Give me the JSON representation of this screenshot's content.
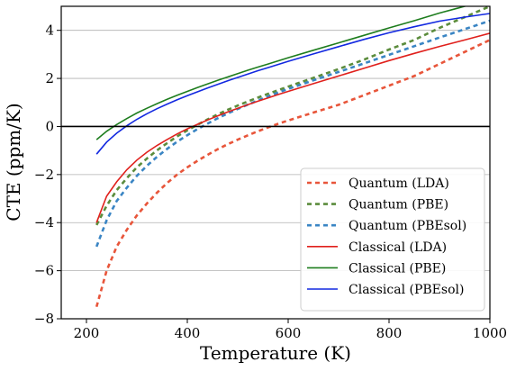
{
  "chart_data": {
    "type": "line",
    "xlabel": "Temperature (K)",
    "ylabel": "CTE (ppm/K)",
    "xlim": [
      150,
      1000
    ],
    "ylim": [
      -8,
      5
    ],
    "xticks": [
      200,
      400,
      600,
      800,
      1000
    ],
    "yticks": [
      -8,
      -6,
      -4,
      -2,
      0,
      2,
      4
    ],
    "grid": "horizontal",
    "zero_line": 0,
    "legend_position": "lower-right",
    "series": [
      {
        "name": "Quantum (LDA)",
        "color": "#e8553a",
        "style": "dashed",
        "x": [
          220,
          240,
          260,
          280,
          300,
          320,
          340,
          360,
          380,
          400,
          420,
          440,
          460,
          480,
          500,
          520,
          540,
          560,
          580,
          600,
          650,
          700,
          750,
          800,
          850,
          900,
          950,
          1000
        ],
        "y": [
          -7.5,
          -6.0,
          -5.0,
          -4.3,
          -3.7,
          -3.2,
          -2.75,
          -2.35,
          -2.0,
          -1.7,
          -1.43,
          -1.18,
          -0.95,
          -0.74,
          -0.55,
          -0.37,
          -0.2,
          -0.04,
          0.11,
          0.25,
          0.58,
          0.9,
          1.3,
          1.7,
          2.1,
          2.6,
          3.1,
          3.6
        ]
      },
      {
        "name": "Quantum (PBE)",
        "color": "#5b8c3c",
        "style": "dashed",
        "x": [
          220,
          240,
          260,
          280,
          300,
          320,
          340,
          360,
          380,
          400,
          420,
          440,
          460,
          480,
          500,
          520,
          540,
          560,
          580,
          600,
          650,
          700,
          750,
          800,
          850,
          900,
          950,
          1000
        ],
        "y": [
          -4.1,
          -3.3,
          -2.65,
          -2.15,
          -1.7,
          -1.33,
          -0.99,
          -0.69,
          -0.41,
          -0.16,
          0.07,
          0.29,
          0.5,
          0.69,
          0.87,
          1.04,
          1.2,
          1.36,
          1.51,
          1.66,
          2.02,
          2.39,
          2.78,
          3.2,
          3.6,
          4.1,
          4.55,
          5.0
        ]
      },
      {
        "name": "Quantum (PBEsol)",
        "color": "#3a85c4",
        "style": "dashed",
        "x": [
          220,
          240,
          260,
          280,
          300,
          320,
          340,
          360,
          380,
          400,
          420,
          440,
          460,
          480,
          500,
          520,
          540,
          560,
          580,
          600,
          650,
          700,
          750,
          800,
          850,
          900,
          950,
          1000
        ],
        "y": [
          -5.0,
          -3.9,
          -3.1,
          -2.55,
          -2.05,
          -1.63,
          -1.26,
          -0.93,
          -0.63,
          -0.36,
          -0.11,
          0.12,
          0.34,
          0.54,
          0.73,
          0.91,
          1.08,
          1.25,
          1.41,
          1.56,
          1.92,
          2.27,
          2.62,
          2.98,
          3.34,
          3.7,
          4.05,
          4.4
        ]
      },
      {
        "name": "Classical (LDA)",
        "color": "#e0201c",
        "style": "solid",
        "x": [
          220,
          240,
          260,
          280,
          300,
          320,
          340,
          360,
          380,
          400,
          420,
          440,
          460,
          480,
          500,
          520,
          540,
          560,
          580,
          600,
          650,
          700,
          750,
          800,
          850,
          900,
          950,
          1000
        ],
        "y": [
          -4.0,
          -2.9,
          -2.3,
          -1.8,
          -1.4,
          -1.07,
          -0.79,
          -0.54,
          -0.31,
          -0.1,
          0.09,
          0.27,
          0.44,
          0.6,
          0.76,
          0.91,
          1.05,
          1.19,
          1.33,
          1.46,
          1.78,
          2.1,
          2.42,
          2.74,
          3.04,
          3.33,
          3.6,
          3.88
        ]
      },
      {
        "name": "Classical (PBE)",
        "color": "#1e7d1e",
        "style": "solid",
        "x": [
          220,
          240,
          260,
          280,
          300,
          320,
          340,
          360,
          380,
          400,
          420,
          440,
          460,
          480,
          500,
          520,
          540,
          560,
          580,
          600,
          650,
          700,
          750,
          800,
          850,
          900,
          950,
          1000
        ],
        "y": [
          -0.55,
          -0.2,
          0.08,
          0.33,
          0.56,
          0.76,
          0.95,
          1.13,
          1.3,
          1.46,
          1.62,
          1.77,
          1.92,
          2.06,
          2.2,
          2.34,
          2.47,
          2.6,
          2.73,
          2.86,
          3.17,
          3.48,
          3.79,
          4.1,
          4.4,
          4.72,
          5.0,
          5.3
        ]
      },
      {
        "name": "Classical (PBEsol)",
        "color": "#1228e0",
        "style": "solid",
        "x": [
          220,
          240,
          260,
          280,
          300,
          320,
          340,
          360,
          380,
          400,
          420,
          440,
          460,
          480,
          500,
          520,
          540,
          560,
          580,
          600,
          650,
          700,
          750,
          800,
          850,
          900,
          950,
          1000
        ],
        "y": [
          -1.15,
          -0.65,
          -0.28,
          0.03,
          0.3,
          0.53,
          0.74,
          0.93,
          1.11,
          1.28,
          1.44,
          1.6,
          1.75,
          1.9,
          2.04,
          2.18,
          2.32,
          2.45,
          2.58,
          2.71,
          3.02,
          3.32,
          3.62,
          3.9,
          4.15,
          4.38,
          4.55,
          4.7
        ]
      }
    ]
  }
}
